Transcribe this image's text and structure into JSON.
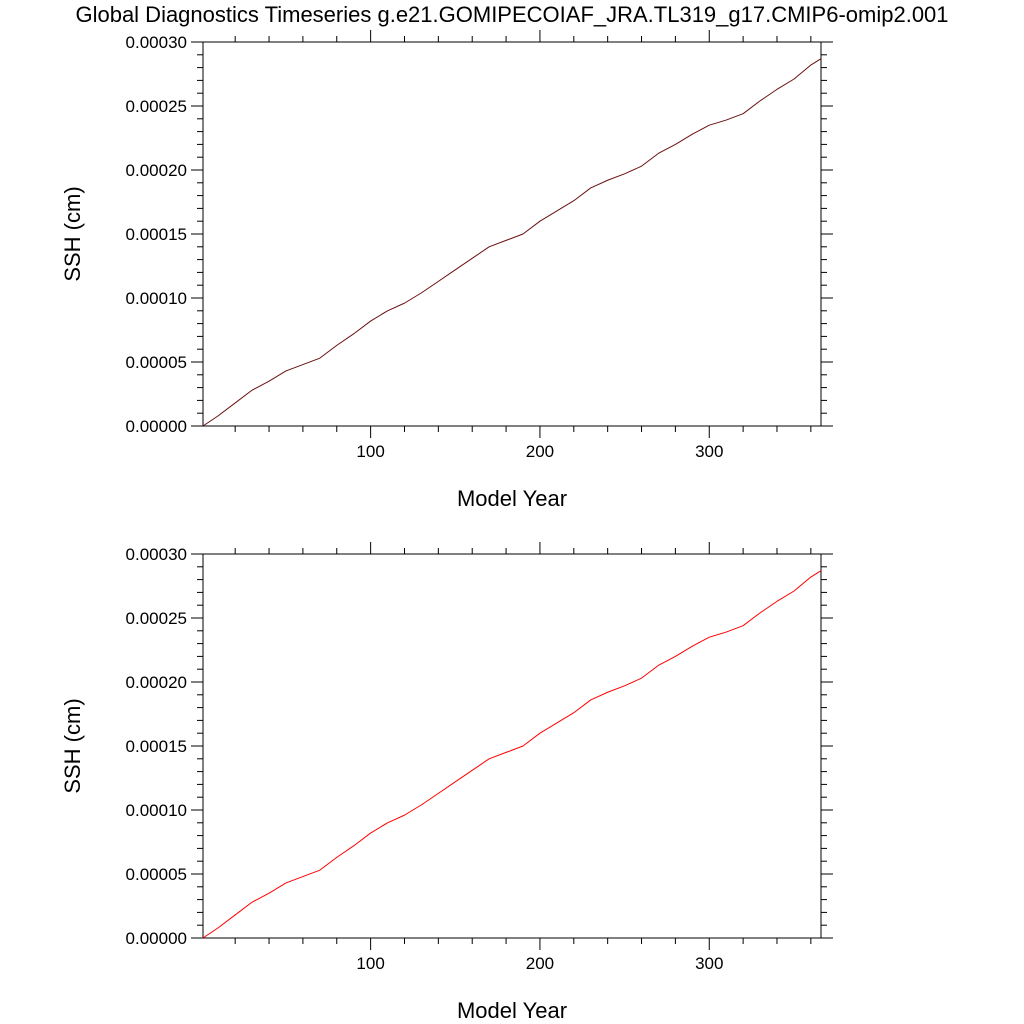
{
  "title": "Global Diagnostics Timeseries g.e21.GOMIPECOIAF_JRA.TL319_g17.CMIP6-omip2.001",
  "chart_data": [
    {
      "type": "line",
      "xlabel": "Model Year",
      "ylabel": "SSH (cm)",
      "xlim": [
        1,
        366
      ],
      "ylim": [
        0.0,
        0.0003
      ],
      "x_major_ticks": [
        100,
        200,
        300
      ],
      "x_tick_labels": [
        "100",
        "200",
        "300"
      ],
      "y_major_ticks": [
        0.0,
        5e-05,
        0.0001,
        0.00015,
        0.0002,
        0.00025,
        0.0003
      ],
      "y_tick_labels": [
        "0.00000",
        "0.00005",
        "0.00010",
        "0.00015",
        "0.00020",
        "0.00025",
        "0.00030"
      ],
      "grid": false,
      "series": [
        {
          "color": "#6b1010",
          "x": [
            1,
            10,
            20,
            30,
            40,
            50,
            60,
            70,
            80,
            90,
            100,
            110,
            120,
            130,
            140,
            150,
            160,
            170,
            180,
            190,
            200,
            210,
            220,
            230,
            240,
            250,
            260,
            270,
            280,
            290,
            300,
            310,
            320,
            330,
            340,
            350,
            360,
            366
          ],
          "y": [
            0.0,
            8e-06,
            1.8e-05,
            2.8e-05,
            3.5e-05,
            4.3e-05,
            4.8e-05,
            5.3e-05,
            6.3e-05,
            7.2e-05,
            8.2e-05,
            9e-05,
            9.6e-05,
            0.000104,
            0.000113,
            0.000122,
            0.000131,
            0.00014,
            0.000145,
            0.00015,
            0.00016,
            0.000168,
            0.000176,
            0.000186,
            0.000192,
            0.000197,
            0.000203,
            0.000213,
            0.00022,
            0.000228,
            0.000235,
            0.000239,
            0.000244,
            0.000254,
            0.000263,
            0.000271,
            0.000282,
            0.000287
          ]
        }
      ]
    },
    {
      "type": "line",
      "xlabel": "Model Year",
      "ylabel": "SSH (cm)",
      "xlim": [
        1,
        366
      ],
      "ylim": [
        0.0,
        0.0003
      ],
      "x_major_ticks": [
        100,
        200,
        300
      ],
      "x_tick_labels": [
        "100",
        "200",
        "300"
      ],
      "y_major_ticks": [
        0.0,
        5e-05,
        0.0001,
        0.00015,
        0.0002,
        0.00025,
        0.0003
      ],
      "y_tick_labels": [
        "0.00000",
        "0.00005",
        "0.00010",
        "0.00015",
        "0.00020",
        "0.00025",
        "0.00030"
      ],
      "grid": false,
      "series": [
        {
          "color": "#ff0000",
          "x": [
            1,
            10,
            20,
            30,
            40,
            50,
            60,
            70,
            80,
            90,
            100,
            110,
            120,
            130,
            140,
            150,
            160,
            170,
            180,
            190,
            200,
            210,
            220,
            230,
            240,
            250,
            260,
            270,
            280,
            290,
            300,
            310,
            320,
            330,
            340,
            350,
            360,
            366
          ],
          "y": [
            0.0,
            8e-06,
            1.8e-05,
            2.8e-05,
            3.5e-05,
            4.3e-05,
            4.8e-05,
            5.3e-05,
            6.3e-05,
            7.2e-05,
            8.2e-05,
            9e-05,
            9.6e-05,
            0.000104,
            0.000113,
            0.000122,
            0.000131,
            0.00014,
            0.000145,
            0.00015,
            0.00016,
            0.000168,
            0.000176,
            0.000186,
            0.000192,
            0.000197,
            0.000203,
            0.000213,
            0.00022,
            0.000228,
            0.000235,
            0.000239,
            0.000244,
            0.000254,
            0.000263,
            0.000271,
            0.000282,
            0.000287
          ]
        }
      ]
    }
  ]
}
